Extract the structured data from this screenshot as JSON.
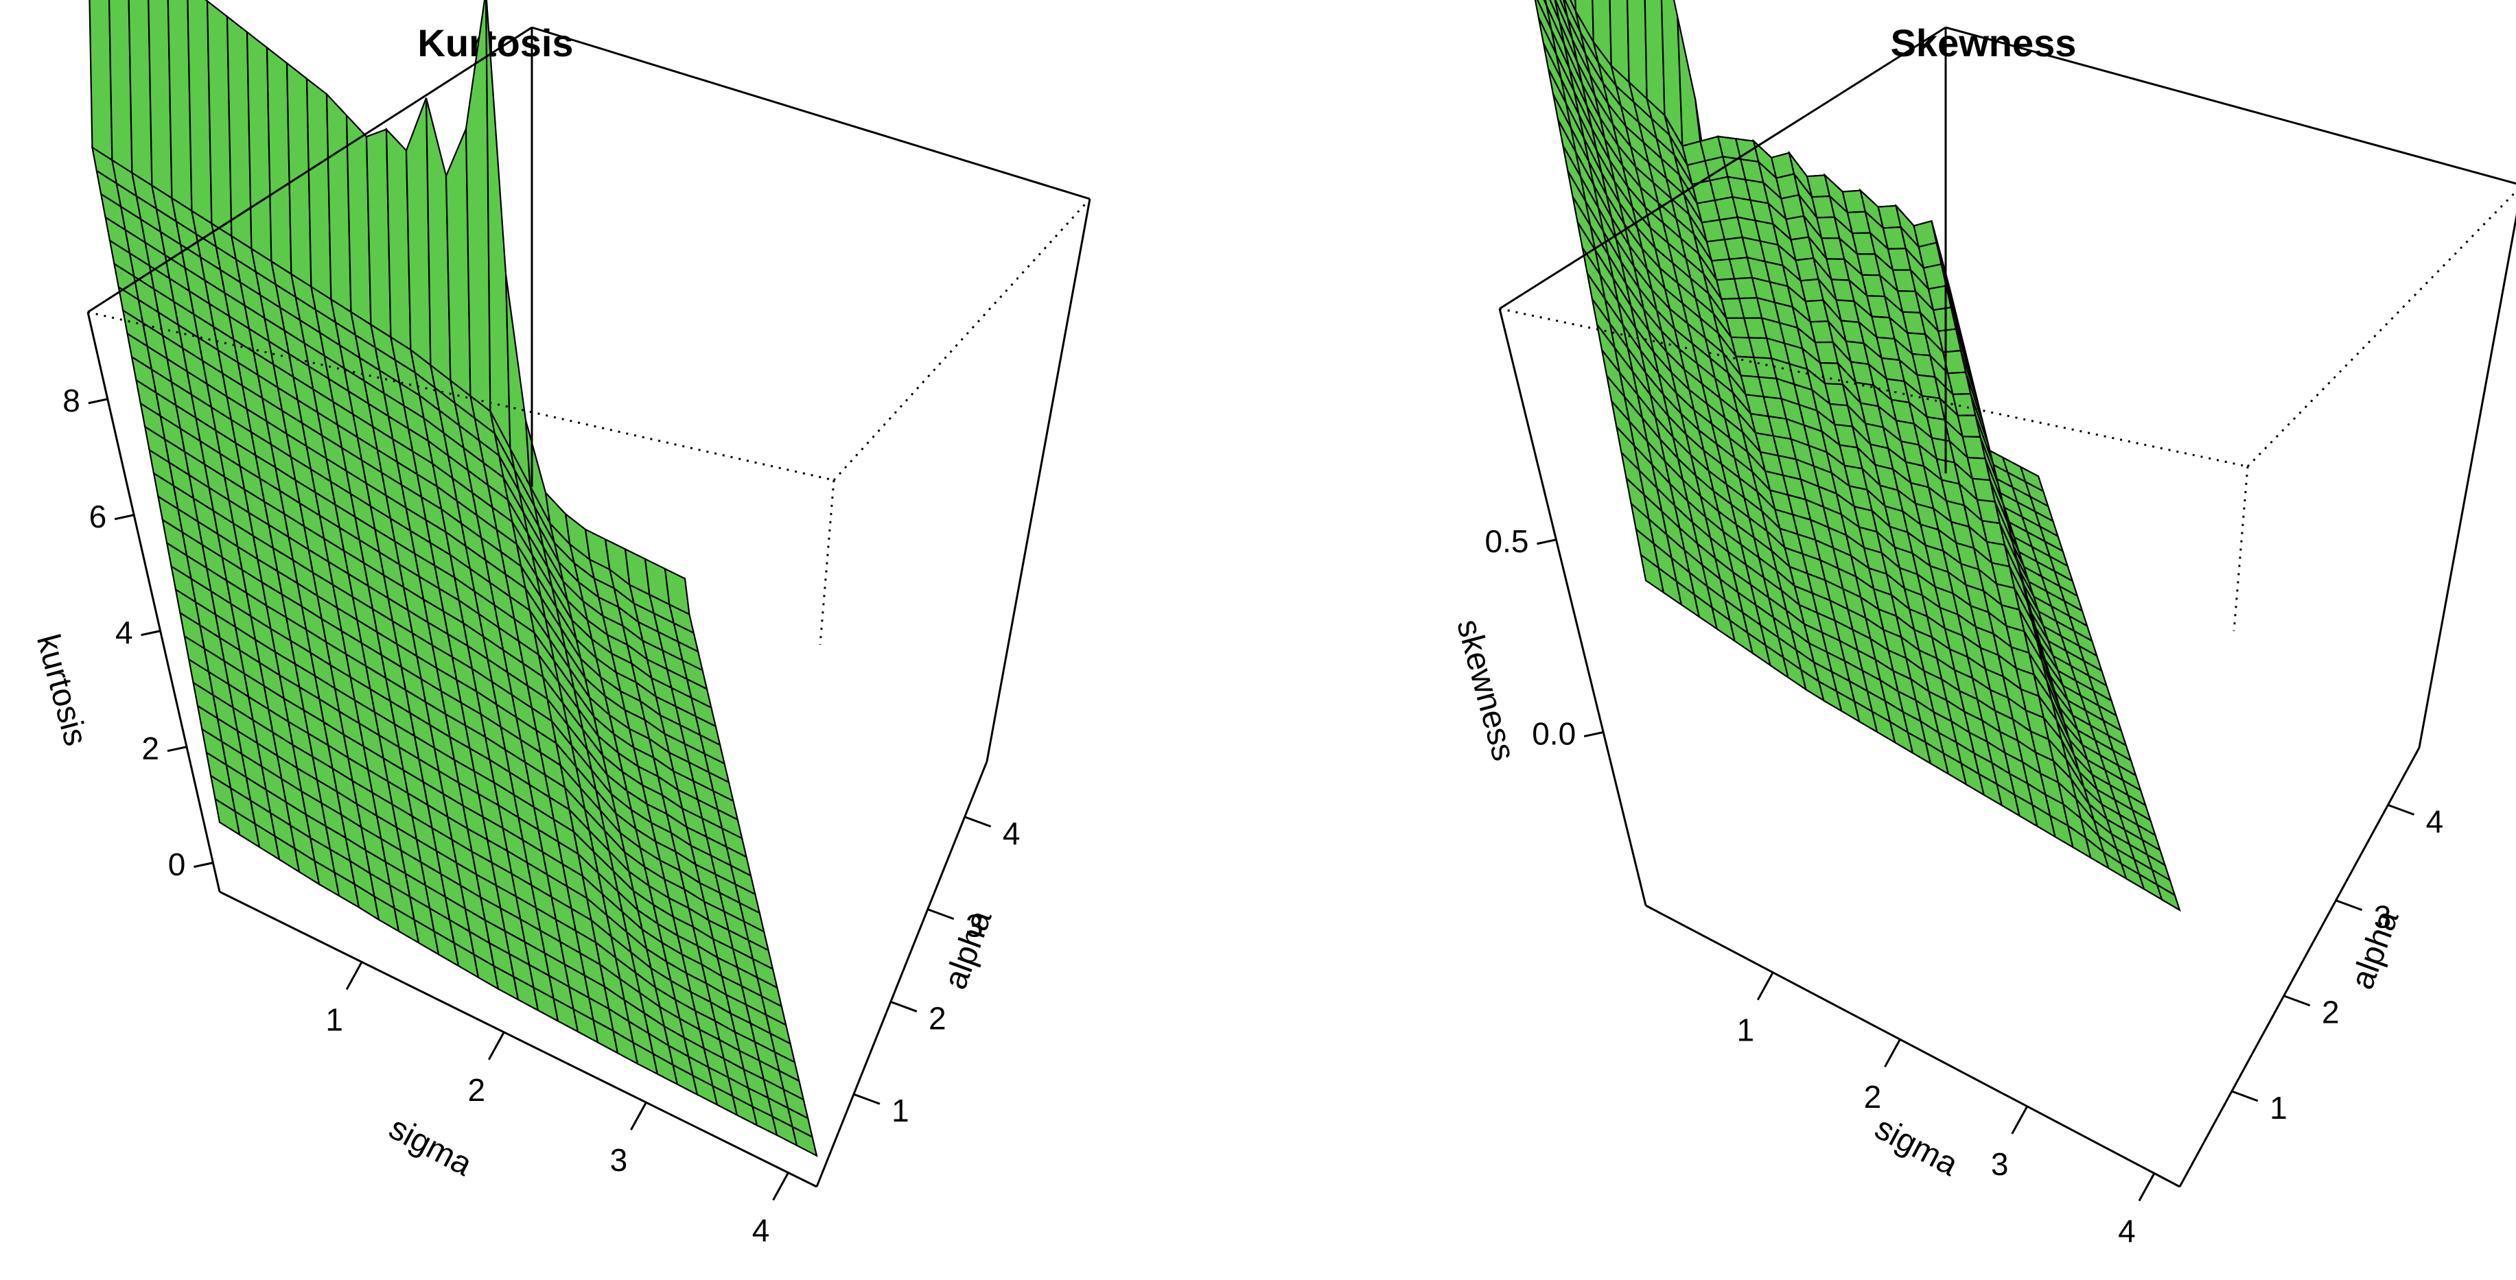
{
  "colors": {
    "surface": "#5cc94a",
    "mesh": "#000000",
    "box": "#000000"
  },
  "chart_data": [
    {
      "type": "surface",
      "title": "Kurtosis",
      "xlabel": "sigma",
      "ylabel": "alpha",
      "zlabel": "kurtosis",
      "xlim": [
        0,
        4.2
      ],
      "ylim": [
        0,
        4.6
      ],
      "zlim": [
        -0.5,
        9.5
      ],
      "x_ticks": [
        "1",
        "2",
        "3",
        "4"
      ],
      "y_ticks": [
        "1",
        "2",
        "3",
        "4"
      ],
      "z_ticks": [
        "0",
        "2",
        "4",
        "6",
        "8"
      ],
      "grid_n": 30,
      "edge_profile": [
        6.6,
        6.5,
        6.4,
        6.3,
        6.2,
        6.1,
        6.0,
        5.9,
        5.8,
        5.7,
        5.6,
        5.5,
        5.4,
        5.2,
        5.0,
        5.3,
        5.1,
        6.2,
        5.0,
        6.0,
        8.6,
        3.8,
        1.4,
        0.3,
        0.1,
        0.0,
        0.0,
        0.0,
        0.0,
        0.0,
        0.0
      ],
      "axis_profile": [
        2.8,
        2.75,
        2.7,
        2.65,
        2.6,
        2.55,
        2.5,
        2.45,
        2.4,
        2.35,
        2.3,
        2.25,
        2.2,
        2.15,
        2.1,
        2.05,
        2.0,
        1.9,
        1.8,
        1.7,
        1.6,
        1.1,
        0.6,
        0.1,
        -0.1,
        -0.2,
        -0.2,
        -0.3,
        -0.3,
        -0.3,
        -0.3
      ],
      "sigma_profile": [
        2.8,
        2.5,
        2.2,
        1.9,
        1.6,
        1.3,
        1.1,
        0.9,
        0.6,
        0.4,
        0.2,
        0.0,
        -0.2,
        -0.4,
        -0.6,
        -0.7,
        -0.8,
        -0.9,
        -1.0,
        -1.1,
        -1.2,
        -1.3,
        -1.35,
        -1.4,
        -1.45,
        -1.5,
        -1.55,
        -1.6,
        -1.6,
        -1.65,
        -1.7
      ],
      "plateau": 0.3
    },
    {
      "type": "surface",
      "title": "Skewness",
      "xlabel": "sigma",
      "ylabel": "alpha",
      "zlabel": "skewness",
      "xlim": [
        0,
        4.2
      ],
      "ylim": [
        0,
        4.6
      ],
      "zlim": [
        -0.45,
        1.1
      ],
      "x_ticks": [
        "1",
        "2",
        "3",
        "4"
      ],
      "y_ticks": [
        "1",
        "2",
        "3",
        "4"
      ],
      "z_ticks": [
        "0.0",
        "0.5"
      ],
      "grid_n": 30,
      "edge_profile": [
        1.0,
        0.99,
        0.985,
        0.98,
        0.975,
        0.97,
        0.975,
        0.98,
        0.995,
        0.8,
        0.6,
        0.4,
        0.1,
        -0.2,
        -0.4,
        -0.5,
        -0.55,
        -0.6,
        -0.65,
        -0.66,
        -0.66,
        -0.66,
        -0.66,
        -0.66,
        -0.66,
        -0.66,
        -0.66,
        -0.66,
        -0.66,
        -0.66,
        -0.66
      ],
      "axis_profile": [
        0.9,
        0.8,
        0.7,
        0.6,
        0.52,
        0.46,
        0.42,
        0.4,
        0.38,
        0.36,
        0.3,
        0.34,
        0.38,
        0.4,
        0.42,
        0.4,
        0.44,
        0.4,
        0.43,
        0.41,
        0.44,
        0.42,
        0.45,
        0.42,
        0.46,
        0.3,
        0.0,
        -0.1,
        -0.1,
        -0.1,
        -0.1
      ],
      "sigma_profile": [
        0.9,
        0.85,
        0.8,
        0.75,
        0.7,
        0.65,
        0.6,
        0.55,
        0.5,
        0.45,
        0.42,
        0.4,
        0.38,
        0.36,
        0.34,
        0.32,
        0.3,
        0.28,
        0.26,
        0.24,
        0.22,
        0.2,
        0.18,
        0.16,
        0.14,
        0.12,
        0.1,
        0.08,
        0.06,
        0.04,
        0.02
      ],
      "plateau": 0.3
    }
  ]
}
